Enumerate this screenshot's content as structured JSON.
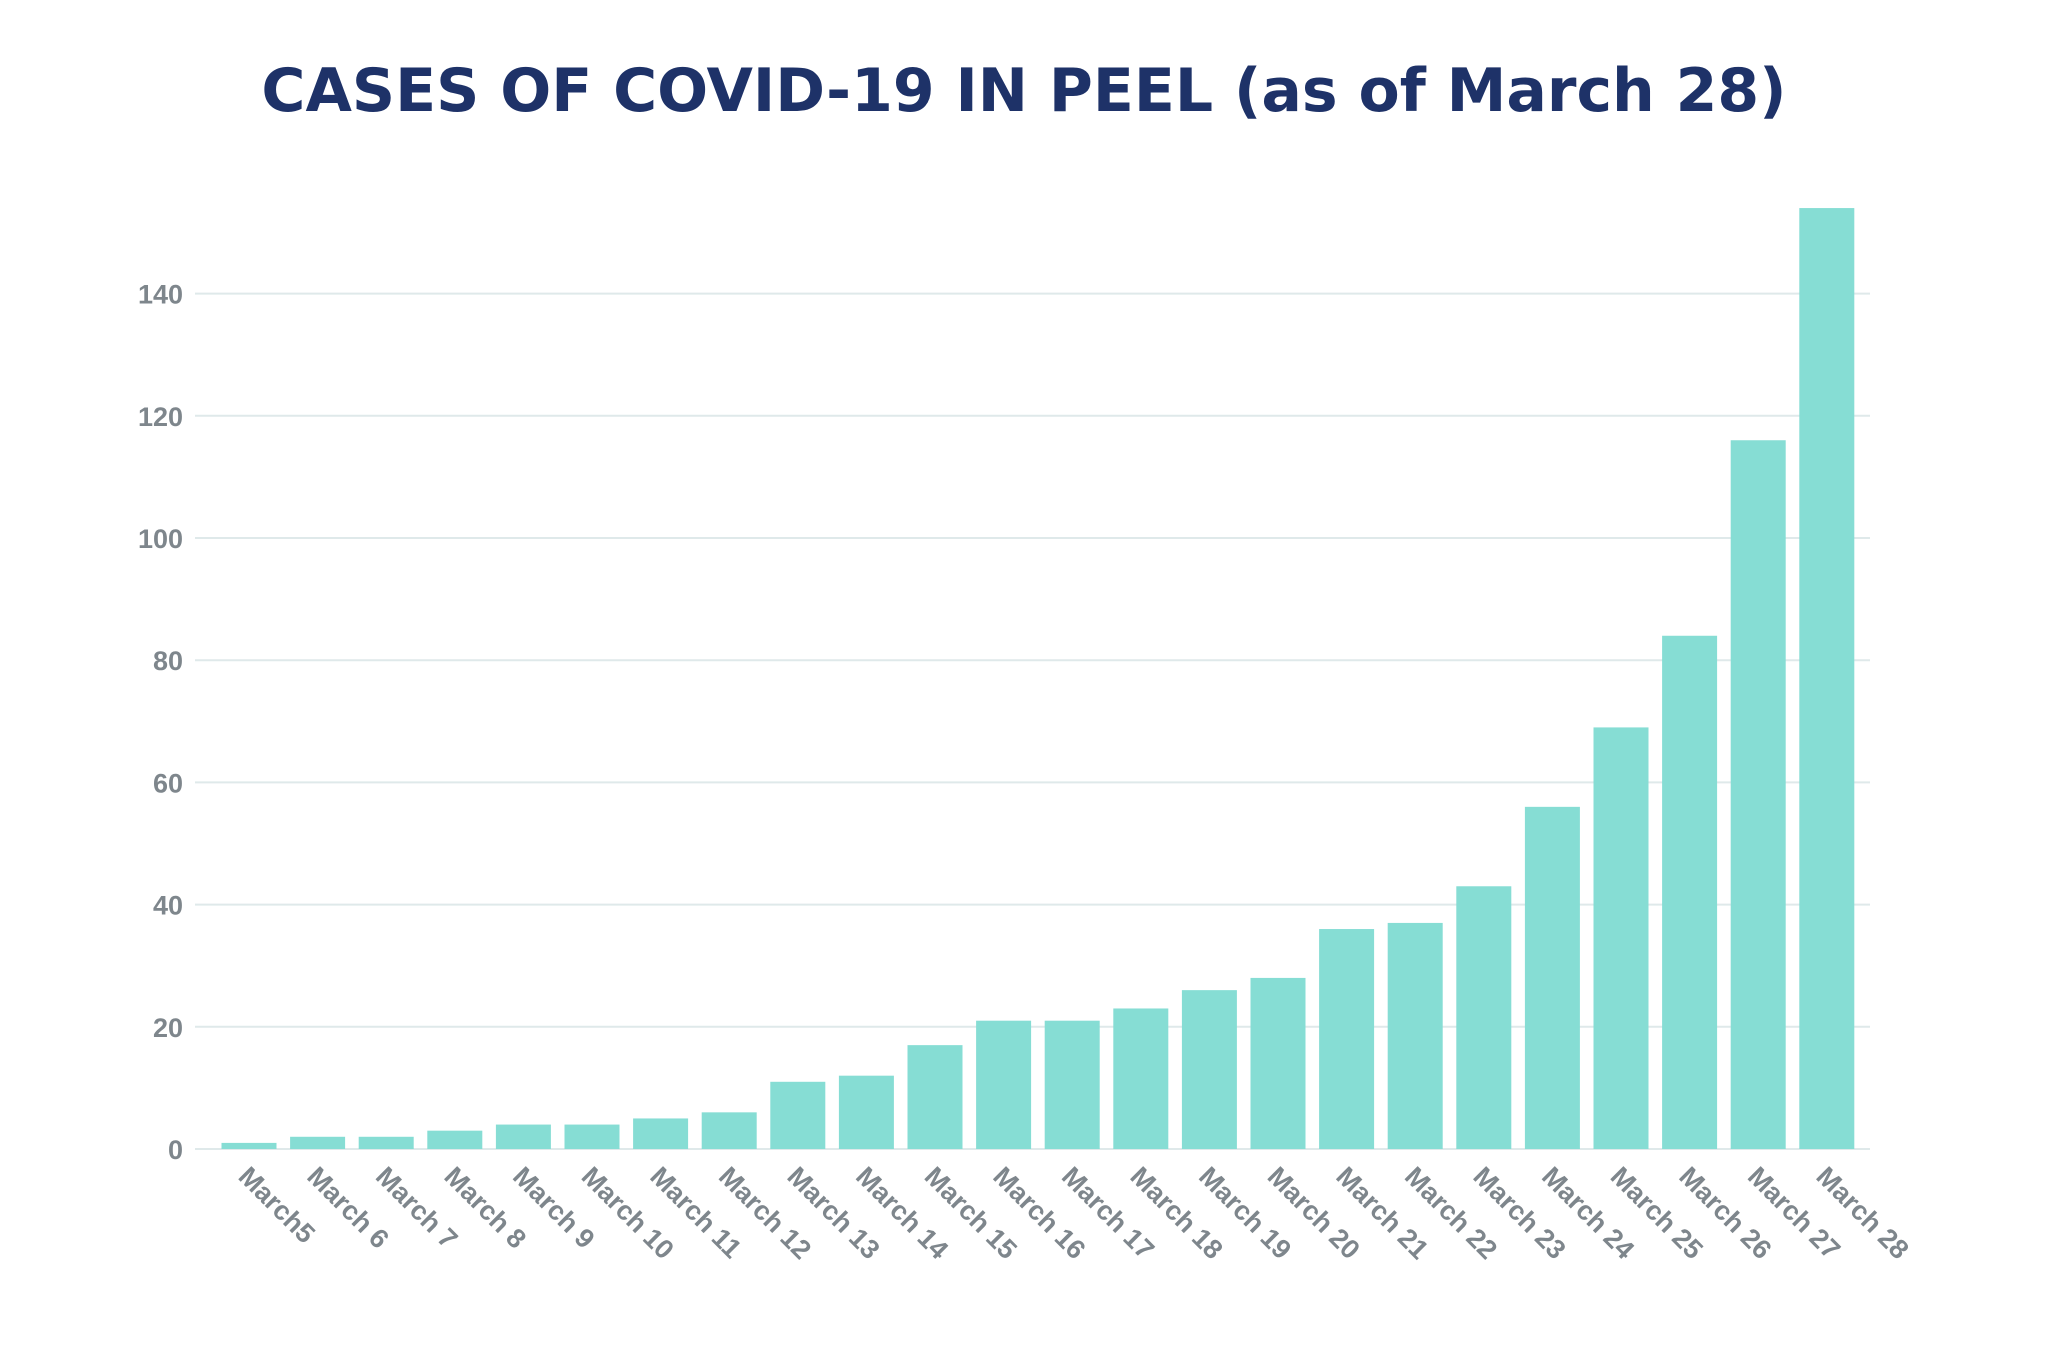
{
  "chart_data": {
    "type": "bar",
    "title": "CASES OF COVID-19 IN PEEL (as of March 28)",
    "xlabel": "",
    "ylabel": "",
    "ylim": [
      0,
      154
    ],
    "yticks": [
      0,
      20,
      40,
      60,
      80,
      100,
      120,
      140
    ],
    "grid": true,
    "bar_color": "#86ddd4",
    "title_color": "#1e3268",
    "categories": [
      "March5",
      "March 6",
      "March 7",
      "March 8",
      "March 9",
      "March 10",
      "March 11",
      "March 12",
      "March 13",
      "March 14",
      "March 15",
      "March 16",
      "March 17",
      "March 18",
      "March 19",
      "March 20",
      "March 21",
      "March 22",
      "March 23",
      "March 24",
      "March 25",
      "March 26",
      "March 27",
      "March 28"
    ],
    "values": [
      1,
      2,
      2,
      3,
      4,
      4,
      5,
      6,
      11,
      12,
      17,
      21,
      21,
      23,
      26,
      28,
      36,
      37,
      43,
      56,
      69,
      84,
      116,
      154
    ]
  }
}
